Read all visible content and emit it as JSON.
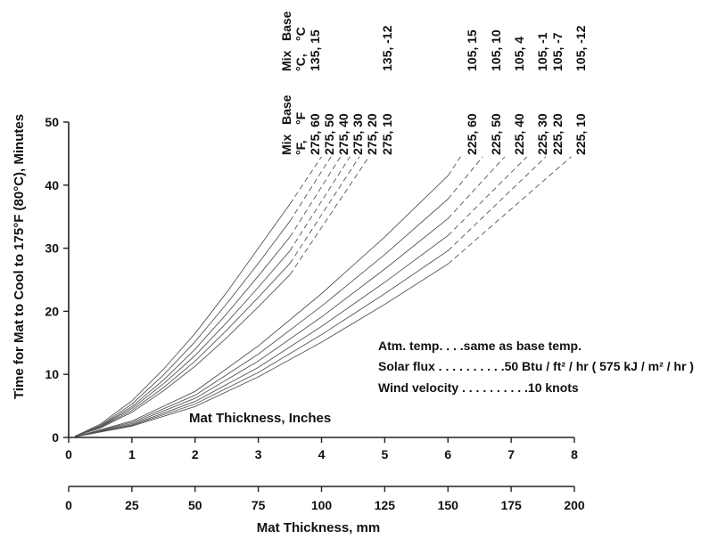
{
  "chart_data": {
    "type": "line",
    "xlabel": "Mat Thickness, Inches",
    "ylabel": "Time for Mat to Cool to 175°F (80°C), Minutes",
    "xlim": [
      0,
      8
    ],
    "ylim": [
      0,
      50
    ],
    "x_ticks": [
      "0",
      "1",
      "2",
      "3",
      "4",
      "5",
      "6",
      "7",
      "8"
    ],
    "y_ticks": [
      "0",
      "10",
      "20",
      "30",
      "40",
      "50"
    ],
    "secondary_x": {
      "label": "Mat Thickness, mm",
      "lim": [
        0,
        200
      ],
      "ticks": [
        "0",
        "25",
        "50",
        "75",
        "100",
        "125",
        "150",
        "175",
        "200"
      ]
    },
    "grid": false,
    "header_f": [
      "Mix",
      "Base",
      "°F,",
      "°F"
    ],
    "header_c": [
      "Mix",
      "Base",
      "°C,",
      "°C"
    ],
    "series": [
      {
        "name": "275, 60",
        "name_c": "135, 15",
        "x": [
          0.1,
          0.5,
          1,
          1.5,
          2,
          2.5,
          3,
          3.5,
          4
        ],
        "y": [
          0.2,
          2.1,
          5.8,
          10.8,
          16.5,
          23,
          30,
          37,
          44.5
        ]
      },
      {
        "name": "275, 50",
        "name_c": "",
        "x": [
          0.1,
          0.5,
          1,
          1.5,
          2,
          2.5,
          3,
          3.5,
          4.15
        ],
        "y": [
          0.2,
          1.9,
          5.3,
          9.9,
          15.2,
          21.2,
          27.6,
          34.3,
          44.5
        ]
      },
      {
        "name": "275, 40",
        "name_c": "",
        "x": [
          0.1,
          0.5,
          1,
          1.5,
          2,
          2.5,
          3,
          3.5,
          4.3
        ],
        "y": [
          0.2,
          1.8,
          4.9,
          9.1,
          14,
          19.6,
          25.6,
          31.8,
          44.5
        ]
      },
      {
        "name": "275, 30",
        "name_c": "",
        "x": [
          0.1,
          0.5,
          1,
          1.5,
          2,
          2.5,
          3,
          3.5,
          4.45
        ],
        "y": [
          0.2,
          1.7,
          4.6,
          8.5,
          13,
          18.2,
          23.8,
          29.6,
          44.5
        ]
      },
      {
        "name": "275, 20",
        "name_c": "",
        "x": [
          0.1,
          0.5,
          1,
          1.5,
          2,
          2.5,
          3,
          3.5,
          4.6
        ],
        "y": [
          0.2,
          1.6,
          4.3,
          7.9,
          12.1,
          17,
          22.2,
          27.6,
          44.5
        ]
      },
      {
        "name": "275, 10",
        "name_c": "135, -12",
        "x": [
          0.1,
          0.5,
          1,
          1.5,
          2,
          2.5,
          3,
          3.5,
          4.75
        ],
        "y": [
          0.2,
          1.5,
          4,
          7.4,
          11.3,
          15.8,
          20.7,
          25.8,
          44.5
        ]
      },
      {
        "name": "225, 60",
        "name_c": "105, 15",
        "x": [
          0.1,
          1,
          2,
          3,
          4,
          5,
          6,
          6.2
        ],
        "y": [
          0.1,
          2.6,
          7.3,
          14.5,
          22.8,
          31.8,
          41.5,
          44.5
        ]
      },
      {
        "name": "225, 50",
        "name_c": "105, 10",
        "x": [
          0.1,
          1,
          2,
          3,
          4,
          5,
          6,
          6.55
        ],
        "y": [
          0.1,
          2.4,
          6.7,
          13.2,
          20.8,
          29,
          37.8,
          44.5
        ]
      },
      {
        "name": "225, 40",
        "name_c": "105, 4",
        "x": [
          0.1,
          1,
          2,
          3,
          4,
          5,
          6,
          6.9
        ],
        "y": [
          0.1,
          2.2,
          6.2,
          12.1,
          19.1,
          26.7,
          34.7,
          44.5
        ]
      },
      {
        "name": "225, 30",
        "name_c": "105, -1",
        "x": [
          0.1,
          1,
          2,
          3,
          4,
          5,
          6,
          7.25
        ],
        "y": [
          0.1,
          2,
          5.7,
          11.1,
          17.6,
          24.6,
          32,
          44.5
        ]
      },
      {
        "name": "225, 20",
        "name_c": "105, -7",
        "x": [
          0.1,
          1,
          2,
          3,
          4,
          5,
          6,
          7.55
        ],
        "y": [
          0.1,
          1.9,
          5.3,
          10.3,
          16.3,
          22.8,
          29.6,
          44.5
        ]
      },
      {
        "name": "225, 10",
        "name_c": "105, -12",
        "x": [
          0.1,
          1,
          2,
          3,
          4,
          5,
          6,
          7.95
        ],
        "y": [
          0.1,
          1.8,
          4.9,
          9.6,
          15.1,
          21.1,
          27.5,
          44.5
        ]
      }
    ],
    "annotations": {
      "atm": "Atm. temp. . . .same as base temp.",
      "solar": "Solar flux . . . . . . . . . .50 Btu / ft² / hr  ( 575 kJ / m² / hr )",
      "wind": "Wind velocity . . . . . . . . . .10 knots"
    }
  }
}
